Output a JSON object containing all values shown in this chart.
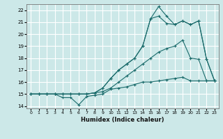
{
  "xlabel": "Humidex (Indice chaleur)",
  "bg_color": "#cce8e8",
  "grid_color": "#b0d0d0",
  "line_color": "#1a6b6b",
  "xlim": [
    -0.5,
    23.5
  ],
  "ylim": [
    13.8,
    22.5
  ],
  "xticks": [
    0,
    1,
    2,
    3,
    4,
    5,
    6,
    7,
    8,
    9,
    10,
    11,
    12,
    13,
    14,
    15,
    16,
    17,
    18,
    19,
    20,
    21,
    22,
    23
  ],
  "yticks": [
    14,
    15,
    16,
    17,
    18,
    19,
    20,
    21,
    22
  ],
  "series": [
    {
      "x": [
        0,
        1,
        2,
        3,
        4,
        5,
        6,
        7,
        8,
        9,
        10,
        11,
        12,
        13,
        14,
        15,
        16,
        17,
        18,
        19,
        20,
        21,
        22,
        23
      ],
      "y": [
        15.0,
        15.0,
        15.0,
        15.0,
        14.7,
        14.7,
        14.1,
        14.8,
        14.9,
        15.0,
        15.4,
        15.5,
        15.6,
        15.8,
        16.0,
        16.0,
        16.1,
        16.2,
        16.3,
        16.4,
        16.1,
        16.1,
        16.1,
        16.1
      ]
    },
    {
      "x": [
        0,
        1,
        2,
        3,
        4,
        5,
        6,
        7,
        8,
        9,
        10,
        11,
        12,
        13,
        14,
        15,
        16,
        17,
        18,
        19,
        20,
        21,
        22,
        23
      ],
      "y": [
        15.0,
        15.0,
        15.0,
        15.0,
        15.0,
        15.0,
        15.0,
        15.0,
        15.1,
        15.2,
        15.5,
        16.0,
        16.5,
        17.0,
        17.5,
        18.0,
        18.5,
        18.8,
        19.0,
        19.5,
        18.0,
        17.9,
        16.1,
        16.1
      ]
    },
    {
      "x": [
        0,
        1,
        2,
        3,
        4,
        5,
        6,
        7,
        8,
        9,
        10,
        11,
        12,
        13,
        14,
        15,
        16,
        17,
        18,
        19,
        20,
        21,
        22,
        23
      ],
      "y": [
        15.0,
        15.0,
        15.0,
        15.0,
        15.0,
        15.0,
        15.0,
        15.0,
        15.1,
        15.5,
        16.3,
        17.0,
        17.5,
        18.0,
        19.0,
        21.3,
        21.5,
        20.9,
        20.8,
        21.1,
        20.8,
        21.1,
        17.9,
        16.1
      ]
    },
    {
      "x": [
        0,
        1,
        2,
        3,
        4,
        5,
        6,
        7,
        8,
        9,
        10,
        11,
        12,
        13,
        14,
        15,
        16,
        17,
        18,
        19,
        20,
        21,
        22,
        23
      ],
      "y": [
        15.0,
        15.0,
        15.0,
        15.0,
        15.0,
        15.0,
        15.0,
        15.0,
        15.1,
        15.5,
        16.3,
        17.0,
        17.5,
        18.0,
        19.0,
        21.3,
        22.3,
        21.5,
        20.8,
        21.1,
        20.8,
        21.1,
        17.9,
        16.1
      ]
    }
  ]
}
